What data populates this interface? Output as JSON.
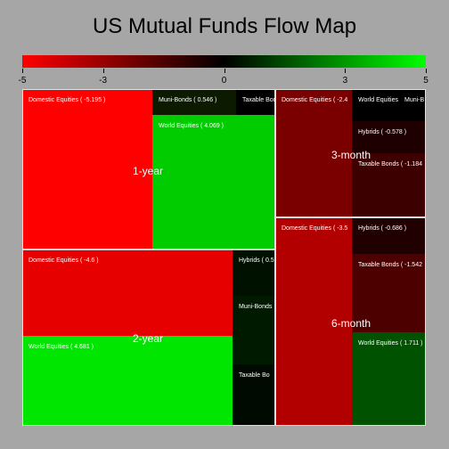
{
  "title": "US Mutual Funds Flow Map",
  "colorbar": {
    "min": -5,
    "max": 5,
    "ticks": [
      "-5",
      "-3",
      "0",
      "3",
      "5"
    ],
    "tick_values": [
      -5,
      -3,
      0,
      3,
      5
    ],
    "colors": {
      "low": "#ff0000",
      "mid": "#000000",
      "high": "#00ff00"
    }
  },
  "chart_data": {
    "type": "heatmap",
    "subtype": "treemap",
    "title": "US Mutual Funds Flow Map",
    "color_range": [
      -5,
      5
    ],
    "groups": [
      {
        "name": "1-year",
        "items": [
          {
            "label": "Domestic Equities ( -5.195 )",
            "category": "Domestic Equities",
            "value": -5.195
          },
          {
            "label": "Muni-Bonds ( 0.546 )",
            "category": "Muni-Bonds",
            "value": 0.546
          },
          {
            "label": "Taxable Bonds",
            "category": "Taxable Bonds",
            "value": null
          },
          {
            "label": "World Equities ( 4.069 )",
            "category": "World Equities",
            "value": 4.069
          }
        ]
      },
      {
        "name": "3-month",
        "items": [
          {
            "label": "Domestic Equities ( -2.4",
            "category": "Domestic Equities",
            "value": null
          },
          {
            "label": "World Equities",
            "category": "World Equities",
            "value": null
          },
          {
            "label": "Muni-B",
            "category": "Muni-Bonds",
            "value": null
          },
          {
            "label": "Hybrids ( -0.578 )",
            "category": "Hybrids",
            "value": -0.578
          },
          {
            "label": "Taxable Bonds ( -1.184",
            "category": "Taxable Bonds",
            "value": null
          }
        ]
      },
      {
        "name": "2-year",
        "items": [
          {
            "label": "Domestic Equities ( -4.6 )",
            "category": "Domestic Equities",
            "value": -4.6
          },
          {
            "label": "World Equities ( 4.681 )",
            "category": "World Equities",
            "value": 4.681
          },
          {
            "label": "Hybrids ( 0.5",
            "category": "Hybrids",
            "value": null
          },
          {
            "label": "Muni-Bonds",
            "category": "Muni-Bonds",
            "value": null
          },
          {
            "label": "Taxable Bo",
            "category": "Taxable Bonds",
            "value": null
          }
        ]
      },
      {
        "name": "6-month",
        "items": [
          {
            "label": "Domestic Equities ( -3.5",
            "category": "Domestic Equities",
            "value": null
          },
          {
            "label": "Hybrids ( -0.686 )",
            "category": "Hybrids",
            "value": -0.686
          },
          {
            "label": "Taxable Bonds ( -1.542",
            "category": "Taxable Bonds",
            "value": null
          },
          {
            "label": "World Equities ( 1.711 )",
            "category": "World Equities",
            "value": 1.711
          }
        ]
      }
    ]
  }
}
